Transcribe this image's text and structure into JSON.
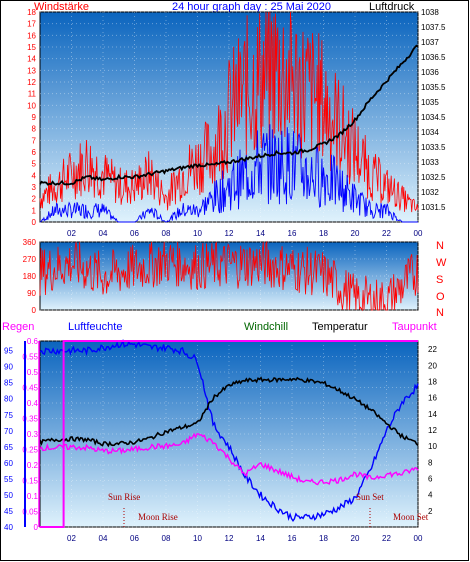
{
  "header": {
    "title": "24 hour graph day : 25 Mai 2020",
    "left_label": "Windstärke",
    "right_label": "Luftdruck"
  },
  "colors": {
    "wind": "#ff0000",
    "wind_avg": "#0000ff",
    "pressure": "#000000",
    "direction": "#ff0000",
    "humidity": "#0000ff",
    "temperature": "#000000",
    "dewpoint": "#ff00ff",
    "rain": "#ff00ff",
    "panel_bg_top": "#0a64be",
    "panel_bg_bottom": "#dff2fc"
  },
  "direction_letters": [
    "N",
    "W",
    "S",
    "O",
    "N"
  ],
  "legend": {
    "rain": "Regen",
    "humidity": "Luftfeuchte",
    "windchill": "Windchill",
    "temperature": "Temperatur",
    "dewpoint": "Taupunkt"
  },
  "annotations": {
    "sun_rise": "Sun Rise",
    "sun_set": "Sun Set",
    "moon_rise": "Moon Rise",
    "moon_set": "Moon Set"
  },
  "chart_data": [
    {
      "type": "line",
      "panel": "wind_pressure",
      "x_ticks": [
        "02",
        "04",
        "06",
        "08",
        "10",
        "12",
        "14",
        "16",
        "18",
        "20",
        "22",
        "00"
      ],
      "y_left_ticks": [
        "0",
        "1",
        "2",
        "3",
        "4",
        "5",
        "6",
        "7",
        "8",
        "9",
        "10",
        "11",
        "12",
        "13",
        "14",
        "15",
        "16",
        "17",
        "18"
      ],
      "y_left_range": [
        0,
        18
      ],
      "y_right_ticks": [
        "1031.5",
        "1032",
        "1032.5",
        "1033",
        "1033.5",
        "1034",
        "1034.5",
        "1035",
        "1035.5",
        "1036",
        "1036.5",
        "1037",
        "1037.5",
        "1038"
      ],
      "y_right_range": [
        1031.0,
        1038.0
      ],
      "series": [
        {
          "key": "gust",
          "x": [
            0,
            1,
            2,
            3,
            4,
            5,
            6,
            7,
            8,
            9,
            10,
            11,
            12,
            13,
            14,
            15,
            16,
            17,
            18,
            19,
            20,
            21,
            22,
            23,
            24
          ],
          "values": [
            2,
            3,
            4,
            5,
            4,
            3,
            3,
            4,
            2,
            4,
            5,
            6,
            9,
            11,
            12,
            13,
            12,
            11,
            10,
            8,
            6,
            4,
            3,
            2,
            1
          ]
        },
        {
          "key": "wind_avg",
          "x": [
            0,
            1,
            2,
            3,
            4,
            5,
            6,
            7,
            8,
            9,
            10,
            11,
            12,
            13,
            14,
            15,
            16,
            17,
            18,
            19,
            20,
            21,
            22,
            23,
            24
          ],
          "values": [
            0,
            1,
            1,
            1,
            1,
            0,
            0,
            1,
            0,
            1,
            1,
            2,
            3,
            4,
            5,
            5,
            5,
            4,
            4,
            3,
            2,
            1,
            1,
            0,
            0
          ]
        },
        {
          "key": "pressure",
          "x": [
            0,
            1,
            2,
            3,
            4,
            5,
            6,
            7,
            8,
            9,
            10,
            11,
            12,
            13,
            14,
            15,
            16,
            17,
            18,
            19,
            20,
            21,
            22,
            23,
            24
          ],
          "values": [
            1032.3,
            1032.3,
            1032.3,
            1032.5,
            1032.4,
            1032.5,
            1032.5,
            1032.6,
            1032.7,
            1032.8,
            1032.9,
            1032.9,
            1033.0,
            1033.1,
            1033.2,
            1033.3,
            1033.3,
            1033.4,
            1033.6,
            1033.9,
            1034.4,
            1035.1,
            1035.7,
            1036.3,
            1036.9
          ]
        }
      ]
    },
    {
      "type": "line",
      "panel": "wind_direction",
      "x_ticks": [
        "02",
        "04",
        "06",
        "08",
        "10",
        "12",
        "14",
        "16",
        "18",
        "20",
        "22",
        "00"
      ],
      "y_ticks": [
        "0",
        "90",
        "180",
        "270",
        "360"
      ],
      "y_range": [
        0,
        360
      ],
      "series": [
        {
          "key": "direction",
          "x": [
            0,
            2,
            4,
            6,
            8,
            10,
            12,
            14,
            16,
            18,
            20,
            22,
            24
          ],
          "values": [
            200,
            250,
            180,
            220,
            260,
            230,
            240,
            250,
            220,
            190,
            60,
            40,
            210
          ]
        }
      ]
    },
    {
      "type": "line",
      "panel": "temp_humidity_rain",
      "x_ticks": [
        "02",
        "04",
        "06",
        "08",
        "10",
        "12",
        "14",
        "16",
        "18",
        "20",
        "22",
        "00"
      ],
      "y_rain_ticks": [
        "0",
        "0.05",
        "0.1",
        "0.15",
        "0.2",
        "0.25",
        "0.3",
        "0.35",
        "0.4",
        "0.45",
        "0.5",
        "0.55",
        "0.6"
      ],
      "y_rain_range": [
        0,
        0.6
      ],
      "y_humidity_ticks": [
        "40",
        "45",
        "50",
        "55",
        "60",
        "65",
        "70",
        "75",
        "80",
        "85",
        "90",
        "95"
      ],
      "y_humidity_range": [
        40,
        98
      ],
      "y_temp_ticks": [
        "2",
        "4",
        "6",
        "8",
        "10",
        "12",
        "14",
        "16",
        "18",
        "20",
        "22"
      ],
      "y_temp_range": [
        0,
        23
      ],
      "series": [
        {
          "key": "rain",
          "x": [
            0,
            1.5,
            1.5,
            24
          ],
          "values": [
            0,
            0,
            0.6,
            0.6
          ]
        },
        {
          "key": "humidity",
          "x": [
            0,
            1,
            2,
            3,
            4,
            5,
            6,
            7,
            8,
            9,
            10,
            11,
            12,
            13,
            14,
            15,
            16,
            17,
            18,
            19,
            20,
            21,
            22,
            23,
            24
          ],
          "values": [
            95,
            95,
            95,
            95,
            96,
            97,
            97,
            96,
            96,
            95,
            92,
            72,
            65,
            56,
            50,
            46,
            43,
            43,
            44,
            46,
            49,
            58,
            70,
            79,
            84
          ]
        },
        {
          "key": "temperature",
          "x": [
            0,
            1,
            2,
            3,
            4,
            5,
            6,
            7,
            8,
            9,
            10,
            11,
            12,
            13,
            14,
            15,
            16,
            17,
            18,
            19,
            20,
            21,
            22,
            23,
            24
          ],
          "values": [
            10.5,
            10.8,
            10.9,
            10.8,
            10.3,
            10.3,
            10.5,
            11,
            11.8,
            12.3,
            12.8,
            16,
            17.5,
            18.1,
            18.2,
            18.2,
            18.3,
            18.1,
            17.8,
            16.9,
            15.8,
            14.5,
            12.8,
            11.2,
            10.3
          ]
        },
        {
          "key": "dewpoint",
          "x": [
            0,
            1,
            2,
            3,
            4,
            5,
            6,
            7,
            8,
            9,
            10,
            11,
            12,
            13,
            14,
            15,
            16,
            17,
            18,
            19,
            20,
            21,
            22,
            23,
            24
          ],
          "values": [
            9.8,
            9.8,
            9.9,
            9.8,
            9.4,
            9.4,
            9.6,
            9.9,
            10,
            10.2,
            11.5,
            10.5,
            8.5,
            6.5,
            7.8,
            7.0,
            6.2,
            5.5,
            5.6,
            5.8,
            6.6,
            6.0,
            6.5,
            6.6,
            7.3
          ]
        }
      ]
    }
  ]
}
